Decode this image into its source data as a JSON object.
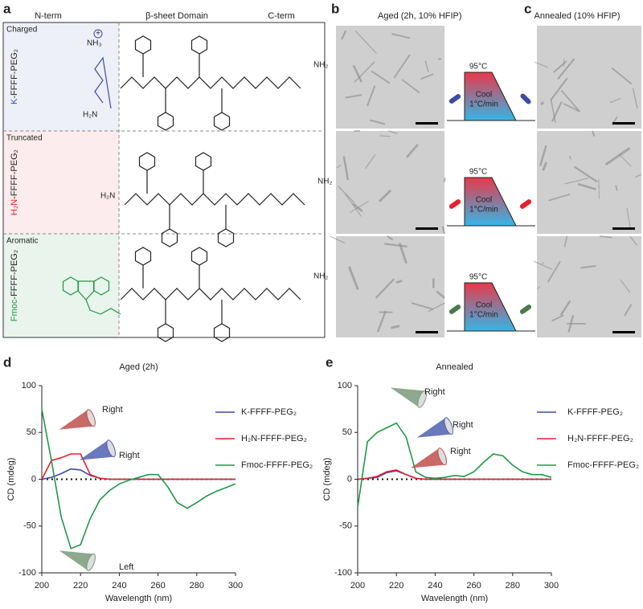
{
  "panel_labels": [
    "a",
    "b",
    "c",
    "d",
    "e"
  ],
  "panel_a": {
    "headers": [
      "N-term",
      "β-sheet Domain",
      "C-term"
    ],
    "rows": [
      {
        "label": "Charged",
        "name_prefix": "K",
        "name_rest": "-FFFF-PEG₂",
        "atoms": [
          "NH₃",
          "+",
          "H₂N",
          "NH₂"
        ]
      },
      {
        "label": "Truncated",
        "name_prefix": "H₂N",
        "name_rest": "-FFFF-PEG₂",
        "atoms": [
          "H₂N",
          "NH₂"
        ]
      },
      {
        "label": "Aromatic",
        "name_prefix": "Fmoc",
        "name_rest": "-FFFF-PEG₂",
        "atoms": [
          "NH₂"
        ]
      }
    ]
  },
  "panel_b": {
    "title": "Aged (2h, 10% HFIP)"
  },
  "panel_c": {
    "title": "Annealed (10% HFIP)"
  },
  "protocol": {
    "high": "95°C",
    "step": "Cool",
    "rate": "1°C/min"
  },
  "chart_data": [
    {
      "type": "line",
      "title": "Aged (2h)",
      "xlabel": "Wavelength (nm)",
      "ylabel": "CD (mdeg)",
      "x": [
        200,
        205,
        210,
        215,
        220,
        225,
        230,
        235,
        240,
        245,
        250,
        255,
        260,
        265,
        270,
        275,
        280,
        285,
        290,
        295,
        300
      ],
      "xlim": [
        200,
        300
      ],
      "xticks": [
        200,
        220,
        240,
        260,
        280,
        300
      ],
      "ylim": [
        -100,
        100
      ],
      "yticks": [
        -100,
        -50,
        0,
        50,
        100
      ],
      "zero_line": true,
      "series": [
        {
          "name": "K-FFFF-PEG₂",
          "color": "#3b4ba6",
          "values": [
            0,
            2,
            6,
            11,
            10,
            4,
            1,
            0,
            0,
            0,
            0,
            0,
            0,
            0,
            0,
            0,
            0,
            0,
            0,
            0,
            0
          ]
        },
        {
          "name": "H₂N-FFFF-PEG₂",
          "color": "#e8202a",
          "values": [
            0,
            20,
            23,
            27,
            27,
            5,
            1,
            0,
            0,
            0,
            0,
            0,
            0,
            0,
            0,
            0,
            0,
            0,
            0,
            0,
            0
          ]
        },
        {
          "name": "Fmoc-FFFF-PEG₂",
          "color": "#1e9a45",
          "values": [
            75,
            20,
            -40,
            -74,
            -70,
            -42,
            -22,
            -12,
            -5,
            -1,
            2,
            5,
            5,
            -8,
            -25,
            -31,
            -25,
            -18,
            -13,
            -9,
            -5
          ]
        }
      ],
      "annotations": [
        "Right",
        "Right",
        "Left"
      ]
    },
    {
      "type": "line",
      "title": "Annealed",
      "xlabel": "Wavelength (nm)",
      "ylabel": "CD (mdeg)",
      "x": [
        200,
        205,
        210,
        215,
        220,
        225,
        230,
        235,
        240,
        245,
        250,
        255,
        260,
        265,
        270,
        275,
        280,
        285,
        290,
        295,
        300
      ],
      "xlim": [
        200,
        300
      ],
      "xticks": [
        200,
        220,
        240,
        260,
        280,
        300
      ],
      "ylim": [
        -100,
        100
      ],
      "yticks": [
        -100,
        -50,
        0,
        50,
        100
      ],
      "zero_line": true,
      "series": [
        {
          "name": "K-FFFF-PEG₂",
          "color": "#3b4ba6",
          "values": [
            0,
            1,
            2,
            7,
            9,
            5,
            1,
            0,
            0,
            0,
            0,
            0,
            0,
            0,
            0,
            0,
            0,
            0,
            0,
            0,
            0
          ]
        },
        {
          "name": "H₂N-FFFF-PEG₂",
          "color": "#e8202a",
          "values": [
            0,
            1,
            3,
            8,
            10,
            5,
            1,
            0,
            0,
            0,
            0,
            0,
            0,
            0,
            0,
            0,
            0,
            0,
            0,
            0,
            0
          ]
        },
        {
          "name": "Fmoc-FFFF-PEG₂",
          "color": "#1e9a45",
          "values": [
            -30,
            40,
            50,
            55,
            60,
            45,
            8,
            2,
            1,
            2,
            4,
            3,
            8,
            18,
            27,
            25,
            15,
            8,
            5,
            5,
            2
          ]
        }
      ],
      "annotations": [
        "Right",
        "Right",
        "Right"
      ]
    }
  ]
}
